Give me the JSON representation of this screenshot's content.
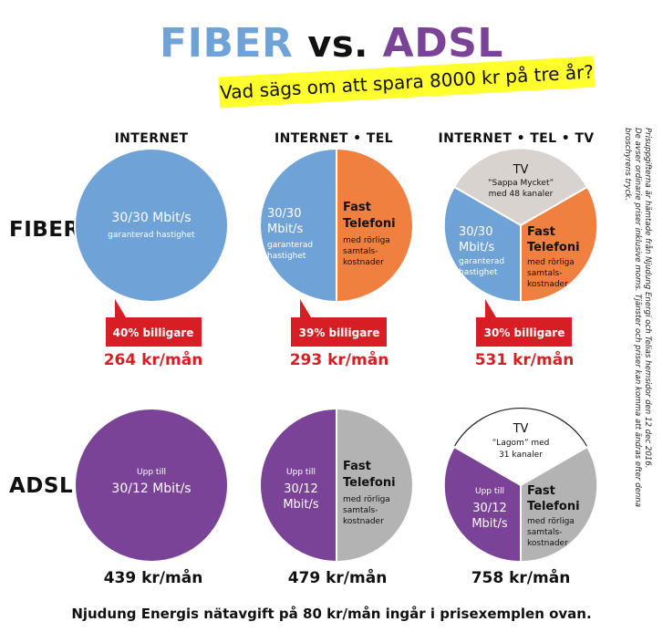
{
  "title": {
    "fiber": "FIBER",
    "vs": "vs.",
    "adsl": "ADSL"
  },
  "banner": "Vad sägs om att spara 8000 kr på tre år?",
  "columns": [
    "INTERNET",
    "INTERNET • TEL",
    "INTERNET • TEL • TV"
  ],
  "rows": {
    "fiber": "FIBER",
    "adsl": "ADSL"
  },
  "fiber": {
    "internet": {
      "l1": "30/30 Mbit/s",
      "l2": "garanterad hastighet",
      "discount": "40% billigare",
      "price": "264 kr/mån"
    },
    "internet_tel": {
      "i1": "30/30",
      "i2": "Mbit/s",
      "i3": "garanterad",
      "i4": "hastighet",
      "t1": "Fast",
      "t2": "Telefoni",
      "t3": "med rörliga",
      "t4": "samtals-",
      "t5": "kostnader",
      "discount": "39% billigare",
      "price": "293 kr/mån"
    },
    "internet_tel_tv": {
      "tv1": "TV",
      "tv2": "”Sappa Mycket”",
      "tv3": "med 48 kanaler",
      "i1": "30/30",
      "i2": "Mbit/s",
      "i3": "garanterad",
      "i4": "hastighet",
      "t1": "Fast",
      "t2": "Telefoni",
      "t3": "med rörliga",
      "t4": "samtals-",
      "t5": "kostnader",
      "discount": "30% billigare",
      "price": "531 kr/mån"
    }
  },
  "adsl": {
    "internet": {
      "l1": "Upp till",
      "l2": "30/12 Mbit/s",
      "price": "439 kr/mån"
    },
    "internet_tel": {
      "i1": "Upp till",
      "i2": "30/12",
      "i3": "Mbit/s",
      "t1": "Fast",
      "t2": "Telefoni",
      "t3": "med rörliga",
      "t4": "samtals-",
      "t5": "kostnader",
      "price": "479 kr/mån"
    },
    "internet_tel_tv": {
      "tv1": "TV",
      "tv2": "”Lagom” med",
      "tv3": "31 kanaler",
      "i1": "Upp till",
      "i2": "30/12",
      "i3": "Mbit/s",
      "t1": "Fast",
      "t2": "Telefoni",
      "t3": "med rörliga",
      "t4": "samtals-",
      "t5": "kostnader",
      "price": "758 kr/mån"
    }
  },
  "footer": "Njudung Energis nätavgift på 80 kr/mån ingår i prisexemplen ovan.",
  "sidenote": {
    "line1": "Prisuppgifterna är hämtade från Njudung Energi och Telias hemsidor den 12 dec 2016.",
    "line2": "De avser ordinarie priser inklusive moms. Tjänster och priser kan komma att ändras efter denna broschyrens tryck."
  },
  "colors": {
    "fiber_blue": "#6fa3d8",
    "tel_orange": "#ef8040",
    "tv_grey": "#d9d3cf",
    "adsl_purple": "#7b4397",
    "adsl_grey": "#b3b3b3",
    "discount_red": "#d81e25",
    "banner_yellow": "#ffff2e"
  }
}
